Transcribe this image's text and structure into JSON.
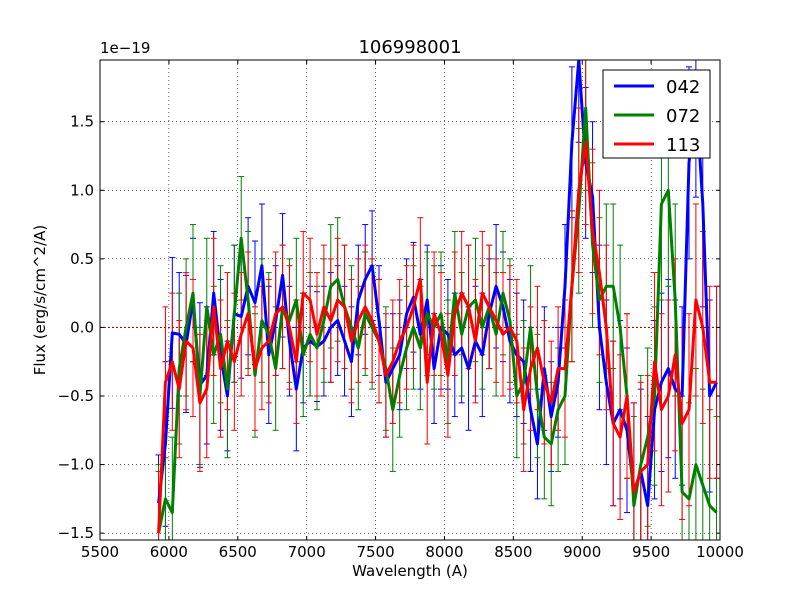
{
  "chart_data": {
    "type": "line",
    "title": "106998001",
    "xlabel": "Wavelength (A)",
    "ylabel": "Flux (erg/s/cm^2/A)",
    "offset_label": "1e−19",
    "xlim": [
      5500,
      10000
    ],
    "ylim": [
      -1.55,
      1.95
    ],
    "grid": true,
    "legend_position": "top-right",
    "x_ticks": [
      5500,
      6000,
      6500,
      7000,
      7500,
      8000,
      8500,
      9000,
      9500,
      10000
    ],
    "x_tick_labels": [
      "5500",
      "6000",
      "6500",
      "7000",
      "7500",
      "8000",
      "8500",
      "9000",
      "9500",
      "10000"
    ],
    "y_ticks": [
      -1.5,
      -1.0,
      -0.5,
      0.0,
      0.5,
      1.0,
      1.5
    ],
    "y_tick_labels": [
      "−1.5",
      "−1.0",
      "−0.5",
      "0.0",
      "0.5",
      "1.0",
      "1.5"
    ],
    "x": [
      5925,
      5975,
      6025,
      6075,
      6125,
      6175,
      6225,
      6275,
      6325,
      6375,
      6425,
      6475,
      6525,
      6575,
      6625,
      6675,
      6725,
      6775,
      6825,
      6875,
      6925,
      6975,
      7025,
      7075,
      7125,
      7175,
      7225,
      7275,
      7325,
      7375,
      7425,
      7475,
      7525,
      7575,
      7625,
      7675,
      7725,
      7775,
      7825,
      7875,
      7925,
      7975,
      8025,
      8075,
      8125,
      8175,
      8225,
      8275,
      8325,
      8375,
      8425,
      8475,
      8525,
      8575,
      8625,
      8675,
      8725,
      8775,
      8825,
      8875,
      8925,
      8975,
      9025,
      9075,
      9125,
      9175,
      9225,
      9275,
      9325,
      9375,
      9425,
      9475,
      9525,
      9575,
      9625,
      9675,
      9725,
      9775,
      9825,
      9875,
      9925,
      9975
    ],
    "series": [
      {
        "name": "042",
        "color": "#0000ff",
        "values": [
          -1.28,
          -0.85,
          -0.04,
          -0.05,
          -0.12,
          0.2,
          -0.42,
          -0.35,
          0.25,
          -0.2,
          -0.5,
          0.1,
          0.08,
          0.3,
          0.18,
          0.45,
          -0.2,
          0.05,
          0.38,
          -0.1,
          -0.45,
          -0.15,
          -0.1,
          -0.14,
          -0.1,
          0.0,
          0.05,
          -0.1,
          -0.25,
          0.2,
          0.35,
          0.45,
          0.05,
          -0.4,
          -0.3,
          -0.2,
          0.1,
          0.22,
          -0.05,
          0.2,
          -0.3,
          0.0,
          -0.05,
          -0.2,
          -0.15,
          -0.3,
          -0.1,
          -0.2,
          0.1,
          0.3,
          0.15,
          -0.1,
          -0.2,
          -0.25,
          -0.6,
          -0.85,
          -0.3,
          -0.65,
          -0.4,
          0.3,
          1.35,
          1.95,
          1.2,
          0.95,
          0.0,
          -0.4,
          -0.7,
          -0.6,
          -0.75,
          -1.2,
          -1.05,
          -1.3,
          -0.6,
          -0.4,
          -0.3,
          -0.45,
          -0.5,
          1.2,
          1.7,
          0.9,
          -0.5,
          -0.4
        ],
        "error": [
          0.35,
          0.6,
          0.55,
          0.45,
          0.5,
          0.45,
          0.6,
          0.5,
          0.45,
          0.55,
          0.4,
          0.5,
          0.45,
          0.5,
          0.45,
          0.45,
          0.5,
          0.4,
          0.45,
          0.4,
          0.45,
          0.4,
          0.4,
          0.4,
          0.4,
          0.4,
          0.4,
          0.4,
          0.4,
          0.4,
          0.4,
          0.4,
          0.4,
          0.4,
          0.4,
          0.4,
          0.4,
          0.4,
          0.4,
          0.4,
          0.4,
          0.45,
          0.4,
          0.45,
          0.4,
          0.45,
          0.4,
          0.45,
          0.4,
          0.45,
          0.4,
          0.45,
          0.45,
          0.45,
          0.45,
          0.4,
          0.45,
          0.4,
          0.4,
          0.45,
          0.55,
          0.6,
          0.55,
          0.55,
          0.6,
          0.6,
          0.6,
          0.65,
          0.6,
          0.65,
          0.6,
          0.65,
          0.65,
          0.65,
          0.65,
          0.65,
          0.65,
          0.7,
          0.75,
          0.75,
          0.7,
          0.7
        ]
      },
      {
        "name": "072",
        "color": "#008000",
        "values": [
          -1.5,
          -1.25,
          -1.35,
          -0.3,
          0.0,
          0.25,
          -0.5,
          0.15,
          -0.2,
          -0.05,
          -0.45,
          0.1,
          0.65,
          0.2,
          -0.35,
          0.05,
          -0.05,
          -0.3,
          0.15,
          0.05,
          0.2,
          -0.2,
          -0.05,
          -0.15,
          0.05,
          0.3,
          0.35,
          0.15,
          0.0,
          -0.15,
          0.1,
          0.0,
          -0.1,
          -0.3,
          -0.6,
          -0.35,
          -0.15,
          0.0,
          -0.15,
          0.1,
          0.0,
          0.1,
          -0.25,
          0.25,
          -0.05,
          0.15,
          0.2,
          0.0,
          0.15,
          -0.05,
          0.25,
          0.05,
          -0.5,
          -0.4,
          0.0,
          -0.5,
          -0.8,
          -0.85,
          -0.6,
          -0.5,
          0.3,
          0.85,
          1.6,
          0.6,
          0.2,
          0.3,
          0.3,
          0.0,
          -0.5,
          -1.3,
          -1.0,
          -0.8,
          -0.5,
          0.9,
          1.0,
          0.2,
          -1.2,
          -1.25,
          -1.0,
          -1.15,
          -1.3,
          -1.35
        ],
        "error": [
          0.5,
          0.6,
          0.55,
          0.55,
          0.5,
          0.5,
          0.5,
          0.5,
          0.5,
          0.5,
          0.5,
          0.5,
          0.45,
          0.5,
          0.45,
          0.45,
          0.45,
          0.45,
          0.45,
          0.45,
          0.45,
          0.45,
          0.45,
          0.45,
          0.45,
          0.45,
          0.45,
          0.45,
          0.45,
          0.45,
          0.45,
          0.45,
          0.45,
          0.45,
          0.45,
          0.45,
          0.45,
          0.45,
          0.45,
          0.45,
          0.45,
          0.45,
          0.45,
          0.45,
          0.45,
          0.45,
          0.45,
          0.45,
          0.45,
          0.45,
          0.45,
          0.45,
          0.45,
          0.45,
          0.45,
          0.45,
          0.45,
          0.45,
          0.45,
          0.5,
          0.55,
          0.6,
          0.6,
          0.6,
          0.6,
          0.6,
          0.6,
          0.6,
          0.6,
          0.65,
          0.65,
          0.65,
          0.65,
          0.7,
          0.7,
          0.7,
          0.7,
          0.7,
          0.7,
          0.7,
          0.7,
          0.7
        ]
      },
      {
        "name": "113",
        "color": "#ff0000",
        "values": [
          -1.5,
          -0.4,
          -0.25,
          -0.45,
          -0.1,
          -0.15,
          -0.55,
          -0.45,
          0.15,
          -0.3,
          -0.1,
          -0.25,
          -0.05,
          0.1,
          -0.3,
          -0.15,
          -0.1,
          0.1,
          0.15,
          0.0,
          -0.25,
          0.25,
          0.2,
          -0.05,
          0.15,
          0.05,
          0.2,
          0.15,
          -0.1,
          0.05,
          0.15,
          0.05,
          -0.1,
          -0.35,
          -0.25,
          -0.1,
          0.0,
          0.15,
          0.35,
          -0.4,
          0.1,
          -0.05,
          -0.35,
          0.1,
          0.25,
          0.15,
          -0.1,
          0.25,
          0.15,
          0.05,
          -0.05,
          0.0,
          -0.1,
          -0.6,
          -0.3,
          -0.15,
          -0.4,
          -0.55,
          -0.3,
          -0.3,
          0.3,
          1.0,
          1.35,
          0.7,
          0.4,
          0.0,
          -0.7,
          -0.8,
          -0.5,
          -1.2,
          -1.05,
          -1.0,
          -0.25,
          -0.6,
          -0.5,
          -0.2,
          -0.7,
          -0.6,
          0.2,
          0.0,
          -0.4,
          -0.4
        ],
        "error": [
          0.45,
          0.55,
          0.5,
          0.5,
          0.5,
          0.5,
          0.5,
          0.5,
          0.5,
          0.5,
          0.5,
          0.5,
          0.45,
          0.45,
          0.45,
          0.45,
          0.45,
          0.45,
          0.45,
          0.45,
          0.45,
          0.45,
          0.45,
          0.45,
          0.45,
          0.45,
          0.45,
          0.45,
          0.45,
          0.45,
          0.45,
          0.45,
          0.45,
          0.45,
          0.45,
          0.45,
          0.45,
          0.45,
          0.45,
          0.45,
          0.45,
          0.45,
          0.45,
          0.45,
          0.45,
          0.45,
          0.45,
          0.45,
          0.45,
          0.45,
          0.45,
          0.45,
          0.45,
          0.45,
          0.45,
          0.45,
          0.45,
          0.45,
          0.45,
          0.5,
          0.55,
          0.6,
          0.6,
          0.6,
          0.6,
          0.6,
          0.6,
          0.6,
          0.6,
          0.65,
          0.65,
          0.65,
          0.65,
          0.7,
          0.7,
          0.7,
          0.7,
          0.7,
          0.7,
          0.7,
          0.7,
          0.7
        ]
      }
    ],
    "reference_line": {
      "y": 0.0,
      "color": "#8b0000"
    }
  }
}
